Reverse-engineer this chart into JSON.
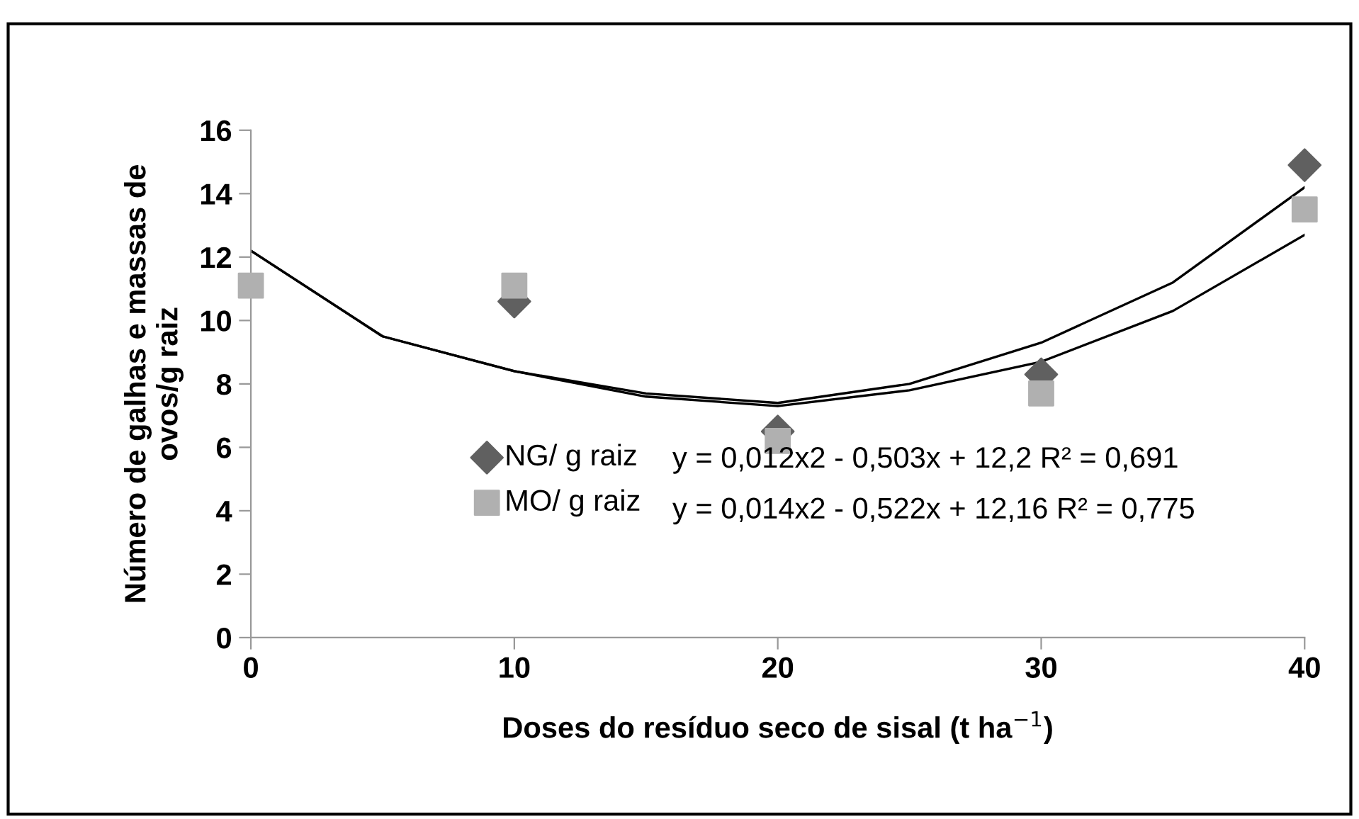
{
  "chart_data": {
    "type": "scatter",
    "xlabel": "Doses do resíduo seco de sisal (t ha$^{−1}$)",
    "ylabel": "Número de galhas e massas de\novos/g raiz",
    "x": [
      0,
      10,
      20,
      30,
      40
    ],
    "series": [
      {
        "name": "NG/ g raiz",
        "color": "#606060",
        "marker": "diamond",
        "values": [
          null,
          10.6,
          6.5,
          8.3,
          14.9
        ]
      },
      {
        "name": "MO/ g raiz",
        "color": "#b0b0b0",
        "marker": "square",
        "values": [
          11.1,
          11.1,
          6.2,
          7.7,
          13.5
        ]
      },
      {
        "type": "line",
        "color": "#000000",
        "x": [
          0,
          5,
          10,
          15,
          20,
          25,
          30,
          35,
          40
        ],
        "values": [
          12.2,
          9.5,
          8.4,
          7.7,
          7.4,
          8.0,
          9.3,
          11.2,
          14.2
        ]
      },
      {
        "type": "line",
        "color": "#000000",
        "x": [
          0,
          5,
          10,
          15,
          20,
          25,
          30,
          35,
          40
        ],
        "values": [
          12.2,
          9.5,
          8.4,
          7.6,
          7.3,
          7.8,
          8.7,
          10.3,
          12.7
        ]
      }
    ],
    "annotations": [
      "y = 0,012x2 - 0,503x + 12,2 R² = 0,691",
      "y = 0,014x2 - 0,522x + 12,16 R² = 0,775"
    ],
    "xlim": [
      0,
      40
    ],
    "xticks": [
      0,
      10,
      20,
      30,
      40
    ],
    "ylim": [
      0,
      16
    ],
    "yticks": [
      0,
      2,
      4,
      6,
      8,
      10,
      12,
      14,
      16
    ],
    "grid": false,
    "legend": "center"
  }
}
